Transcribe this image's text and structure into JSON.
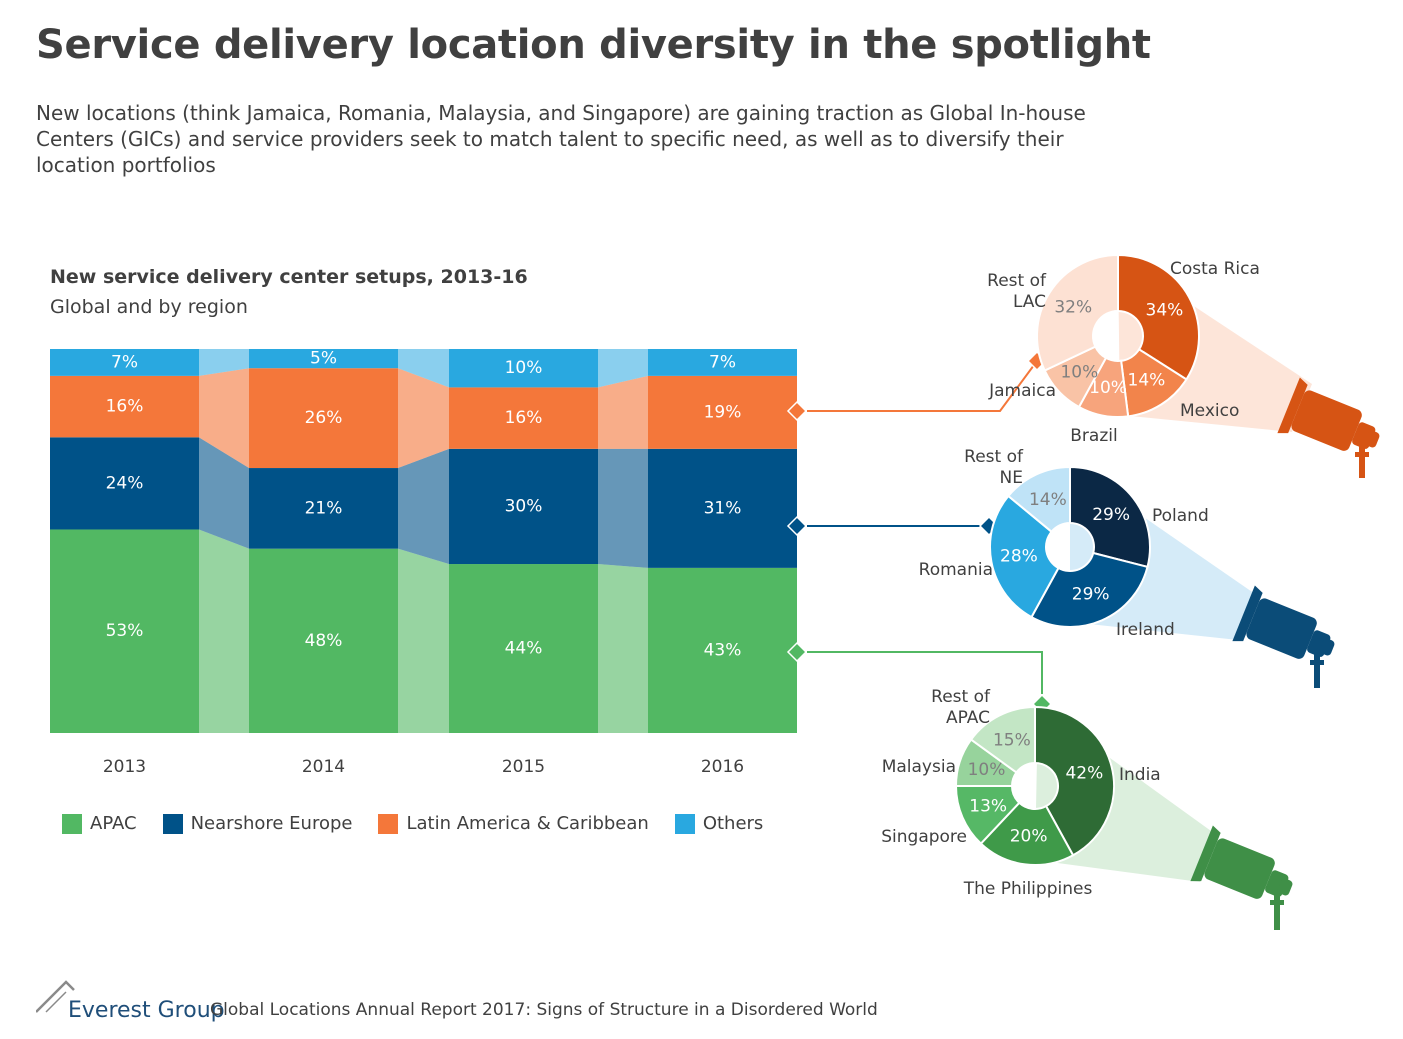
{
  "title": "Service delivery location diversity in the spotlight",
  "subtitle": "New locations (think Jamaica, Romania, Malaysia, and Singapore) are gaining traction as Global In-house Centers (GICs) and service providers seek to match talent to specific need, as well as to diversify their location portfolios",
  "chart_data": [
    {
      "type": "bar",
      "stacked": true,
      "normalized": true,
      "title": "New service delivery center setups, 2013-16",
      "subtitle": "Global and by region",
      "categories": [
        "2013",
        "2014",
        "2015",
        "2016"
      ],
      "series": [
        {
          "name": "APAC",
          "color": "#52b863",
          "values": [
            53,
            48,
            44,
            43
          ],
          "labels": [
            "53%",
            "48%",
            "44%",
            "43%"
          ]
        },
        {
          "name": "Nearshore Europe",
          "color": "#005288",
          "values": [
            24,
            21,
            30,
            31
          ],
          "labels": [
            "24%",
            "21%",
            "30%",
            "31%"
          ]
        },
        {
          "name": "Latin America & Caribbean",
          "color": "#f4773a",
          "values": [
            16,
            26,
            16,
            19
          ],
          "labels": [
            "16%",
            "26%",
            "16%",
            "19%"
          ]
        },
        {
          "name": "Others",
          "color": "#29a8e0",
          "values": [
            7,
            5,
            10,
            7
          ],
          "labels": [
            "7%",
            "5%",
            "10%",
            "7%"
          ]
        }
      ],
      "legend_position": "bottom"
    },
    {
      "type": "pie",
      "region": "Latin America & Caribbean",
      "slices": [
        {
          "label": "Costa Rica",
          "value": 34,
          "pct": "34%",
          "color": "#d65414"
        },
        {
          "label": "Mexico",
          "value": 14,
          "pct": "14%",
          "color": "#f2844b"
        },
        {
          "label": "Brazil",
          "value": 10,
          "pct": "10%",
          "color": "#f7a47c"
        },
        {
          "label": "Jamaica",
          "value": 10,
          "pct": "10%",
          "color": "#f9c3a6"
        },
        {
          "label": "Rest of LAC",
          "value": 32,
          "pct": "32%",
          "color": "#fde1d3"
        }
      ]
    },
    {
      "type": "pie",
      "region": "Nearshore Europe",
      "slices": [
        {
          "label": "Poland",
          "value": 29,
          "pct": "29%",
          "color": "#0b2845"
        },
        {
          "label": "Ireland",
          "value": 29,
          "pct": "29%",
          "color": "#005288"
        },
        {
          "label": "Romania",
          "value": 28,
          "pct": "28%",
          "color": "#29a8e0"
        },
        {
          "label": "Rest of NE",
          "value": 14,
          "pct": "14%",
          "color": "#bfe3f7"
        }
      ]
    },
    {
      "type": "pie",
      "region": "APAC",
      "slices": [
        {
          "label": "India",
          "value": 42,
          "pct": "42%",
          "color": "#2e6b35"
        },
        {
          "label": "The Philippines",
          "value": 20,
          "pct": "20%",
          "color": "#3f9a49"
        },
        {
          "label": "Singapore",
          "value": 13,
          "pct": "13%",
          "color": "#56b866"
        },
        {
          "label": "Malaysia",
          "value": 10,
          "pct": "10%",
          "color": "#97d39c"
        },
        {
          "label": "Rest of APAC",
          "value": 15,
          "pct": "15%",
          "color": "#c3e6c5"
        }
      ]
    }
  ],
  "footer": {
    "logo_text": "Everest Group",
    "source": "Global Locations Annual Report 2017: Signs of Structure in a Disordered World"
  }
}
